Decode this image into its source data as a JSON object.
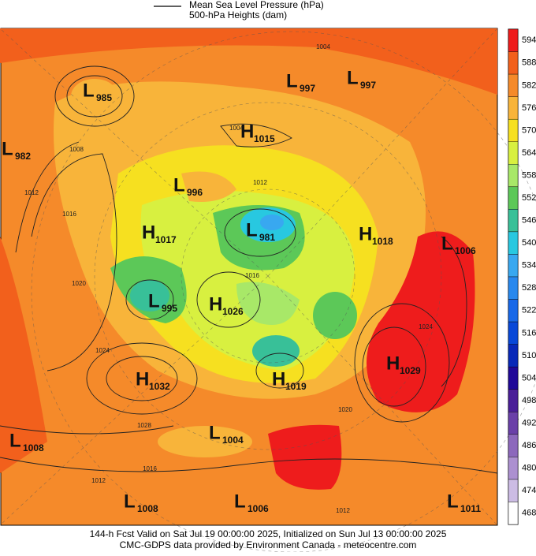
{
  "legend": {
    "line_label": "Mean Sea Level Pressure (hPa)",
    "fill_label": "500-hPa Heights (dam)"
  },
  "colorbar": {
    "ticks": [
      594,
      588,
      582,
      576,
      570,
      564,
      558,
      552,
      546,
      540,
      534,
      528,
      522,
      516,
      510,
      504,
      498,
      492,
      486,
      480,
      474,
      468
    ],
    "colors": [
      "#ee1c1c",
      "#f2601c",
      "#f58a2a",
      "#f8b43a",
      "#f6e020",
      "#d8f040",
      "#a8e868",
      "#5cc858",
      "#38c098",
      "#28c8e0",
      "#38a8f0",
      "#2888ee",
      "#1868e8",
      "#0848d8",
      "#0828b8",
      "#200898",
      "#4a1e98",
      "#6a40a8",
      "#8c68bc",
      "#ac90d0",
      "#ccbce4",
      "#ffffff"
    ]
  },
  "systems": [
    {
      "type": "L",
      "value": 985
    },
    {
      "type": "L",
      "value": 997
    },
    {
      "type": "L",
      "value": 997
    },
    {
      "type": "H",
      "value": 1015
    },
    {
      "type": "L",
      "value": 982
    },
    {
      "type": "L",
      "value": 996
    },
    {
      "type": "H",
      "value": 1017
    },
    {
      "type": "L",
      "value": 981
    },
    {
      "type": "H",
      "value": 1018
    },
    {
      "type": "L",
      "value": 1006
    },
    {
      "type": "L",
      "value": 995
    },
    {
      "type": "H",
      "value": 1026
    },
    {
      "type": "H",
      "value": 1029
    },
    {
      "type": "H",
      "value": 1032
    },
    {
      "type": "H",
      "value": 1019
    },
    {
      "type": "L",
      "value": 1008
    },
    {
      "type": "L",
      "value": 1004
    },
    {
      "type": "L",
      "value": 1008
    },
    {
      "type": "L",
      "value": 1006
    },
    {
      "type": "L",
      "value": 1011
    }
  ],
  "isobar_labels": [
    1004,
    1004,
    1008,
    1012,
    1016,
    1020,
    1024,
    1028,
    1016,
    1012,
    1012,
    1016,
    1024,
    1020,
    1012
  ],
  "footer": {
    "line1": "144-h Fcst Valid on Sat Jul 19 00:00:00 2025, Initialized on Sun Jul 13 00:00:00 2025",
    "line2": "CMC-GDPS data provided by Environment Canada - meteocentre.com"
  }
}
